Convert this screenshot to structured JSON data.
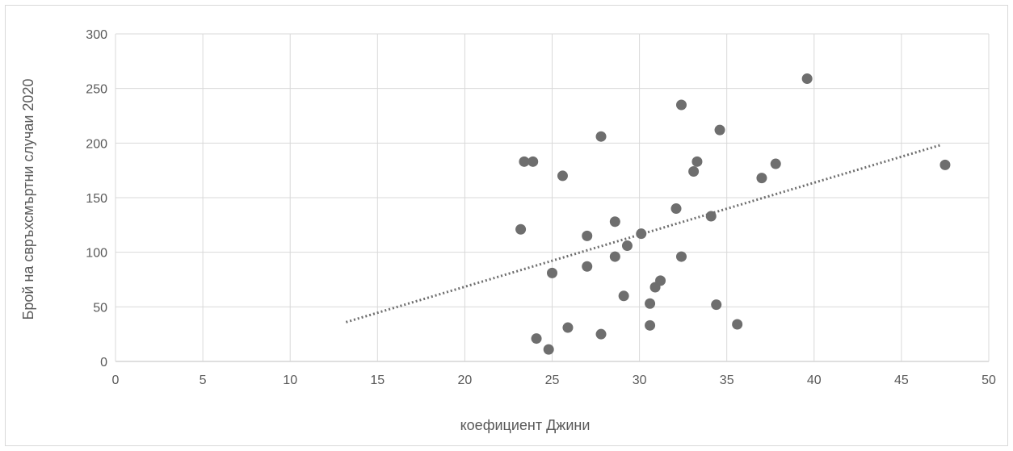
{
  "chart_data": {
    "type": "scatter",
    "title": "",
    "xlabel": "коефициент  Джини",
    "ylabel": "Брой на свръхсмъртни случаи 2020",
    "xlim": [
      0,
      50
    ],
    "ylim": [
      0,
      300
    ],
    "x_ticks": [
      0,
      5,
      10,
      15,
      20,
      25,
      30,
      35,
      40,
      45,
      50
    ],
    "y_ticks": [
      0,
      50,
      100,
      150,
      200,
      250,
      300
    ],
    "x_tick_labels": [
      "0",
      "5",
      "10",
      "15",
      "20",
      "25",
      "30",
      "35",
      "40",
      "45",
      "50"
    ],
    "y_tick_labels": [
      "0",
      "50",
      "100",
      "150",
      "200",
      "250",
      "300"
    ],
    "grid": true,
    "legend": "none",
    "marker_color": "#6e6e6e",
    "trendline": {
      "style": "dotted",
      "color": "#6e6e6e",
      "points": [
        [
          13.2,
          36
        ],
        [
          47.2,
          198
        ]
      ]
    },
    "series": [
      {
        "points": [
          [
            23.2,
            121
          ],
          [
            23.4,
            183
          ],
          [
            23.9,
            183
          ],
          [
            24.1,
            21
          ],
          [
            24.8,
            11
          ],
          [
            25.0,
            81
          ],
          [
            25.6,
            170
          ],
          [
            25.9,
            31
          ],
          [
            27.0,
            115
          ],
          [
            27.0,
            87
          ],
          [
            27.8,
            206
          ],
          [
            27.8,
            25
          ],
          [
            28.6,
            128
          ],
          [
            28.6,
            96
          ],
          [
            29.1,
            60
          ],
          [
            29.3,
            106
          ],
          [
            30.1,
            117
          ],
          [
            30.6,
            53
          ],
          [
            30.6,
            33
          ],
          [
            30.9,
            68
          ],
          [
            31.2,
            74
          ],
          [
            32.1,
            140
          ],
          [
            32.4,
            96
          ],
          [
            32.4,
            235
          ],
          [
            33.1,
            174
          ],
          [
            33.3,
            183
          ],
          [
            34.1,
            133
          ],
          [
            34.4,
            52
          ],
          [
            34.6,
            212
          ],
          [
            35.6,
            34
          ],
          [
            37.0,
            168
          ],
          [
            37.8,
            181
          ],
          [
            39.6,
            259
          ],
          [
            47.5,
            180
          ]
        ]
      }
    ]
  }
}
